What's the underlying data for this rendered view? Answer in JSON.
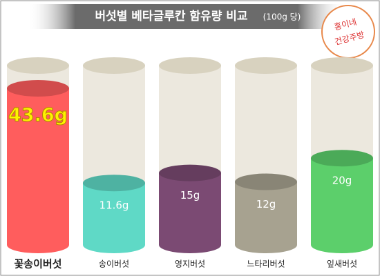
{
  "chart_data": {
    "type": "bar",
    "title": "버섯별 베타글루칸 함유량 비교",
    "subtitle": "(100g 당)",
    "logo": [
      "홍이네",
      "건강주방"
    ],
    "categories": [
      "꽃송이버섯",
      "송이버섯",
      "영지버섯",
      "느타리버섯",
      "잎새버섯"
    ],
    "values": [
      43.6,
      11.6,
      15,
      12,
      20
    ],
    "value_labels": [
      "43.6g",
      "11.6g",
      "15g",
      "12g",
      "20g"
    ],
    "colors": [
      "#ff5d5d",
      "#5fd9c6",
      "#7b4a73",
      "#a7a290",
      "#5ccf6b"
    ]
  }
}
